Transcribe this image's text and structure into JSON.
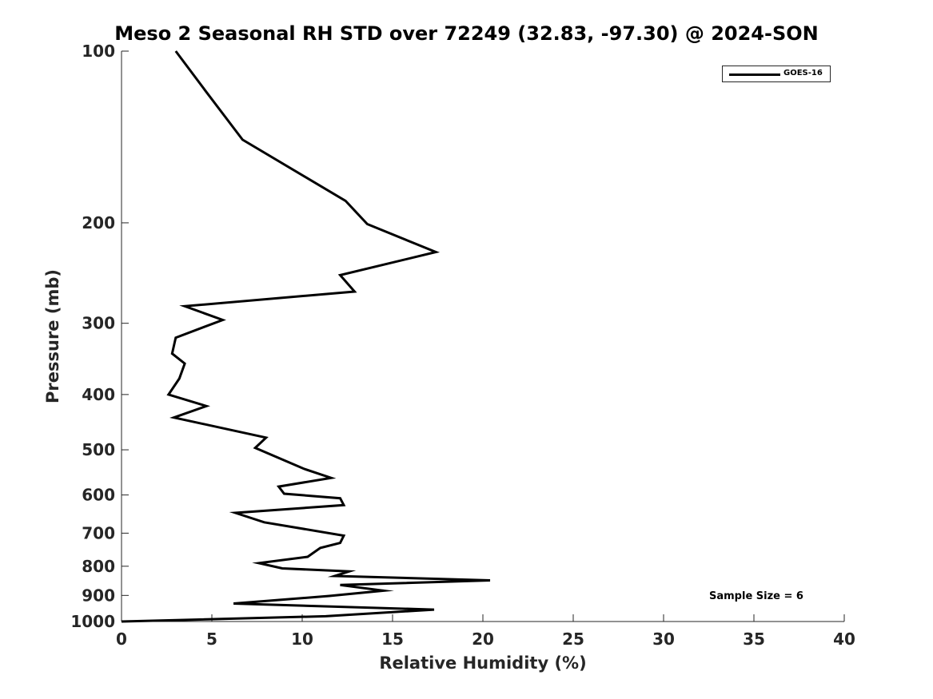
{
  "chart_data": {
    "type": "line",
    "title": "Meso 2 Seasonal RH STD over 72249 (32.83, -97.30) @ 2024-SON",
    "xlabel": "Relative Humidity (%)",
    "ylabel": "Pressure (mb)",
    "xlim": [
      0,
      40
    ],
    "ylim": [
      1000,
      100
    ],
    "y_scale": "log",
    "x_ticks": [
      0,
      5,
      10,
      15,
      20,
      25,
      30,
      35,
      40
    ],
    "y_ticks": [
      100,
      200,
      300,
      400,
      500,
      600,
      700,
      800,
      900,
      1000
    ],
    "grid": false,
    "legend_position": "top-right",
    "annotation": "Sample Size = 6",
    "series": [
      {
        "name": "GOES-16",
        "color": "#000000",
        "x": [
          3.0,
          4.7,
          6.7,
          12.4,
          13.6,
          17.4,
          12.1,
          12.9,
          3.5,
          5.6,
          3.0,
          2.8,
          3.5,
          3.2,
          2.6,
          4.7,
          2.9,
          8.0,
          7.4,
          10.1,
          11.6,
          8.7,
          9.0,
          12.1,
          12.3,
          6.3,
          7.9,
          12.3,
          12.1,
          11.0,
          10.3,
          7.6,
          8.9,
          12.6,
          11.8,
          20.4,
          12.1,
          14.5,
          11.5,
          6.2,
          17.3,
          11.3,
          0.0
        ],
        "y": [
          100,
          118,
          143,
          183,
          201,
          225,
          247,
          264,
          280,
          296,
          318,
          339,
          353,
          375,
          400,
          419,
          439,
          476,
          496,
          540,
          560,
          580,
          597,
          608,
          625,
          645,
          670,
          707,
          728,
          743,
          770,
          790,
          807,
          817,
          832,
          847,
          863,
          883,
          902,
          930,
          953,
          979,
          1000
        ]
      }
    ]
  }
}
